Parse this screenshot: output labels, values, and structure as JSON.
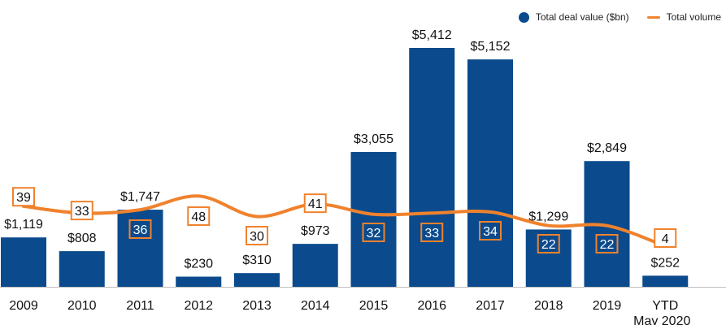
{
  "chart_data": {
    "type": "bar",
    "categories": [
      "2009",
      "2010",
      "2011",
      "2012",
      "2013",
      "2014",
      "2015",
      "2016",
      "2017",
      "2018",
      "2019",
      "YTD May 2020"
    ],
    "category_lines": [
      [
        "2009"
      ],
      [
        "2010"
      ],
      [
        "2011"
      ],
      [
        "2012"
      ],
      [
        "2013"
      ],
      [
        "2014"
      ],
      [
        "2015"
      ],
      [
        "2016"
      ],
      [
        "2017"
      ],
      [
        "2018"
      ],
      [
        "2019"
      ],
      [
        "YTD",
        "May 2020"
      ]
    ],
    "series": [
      {
        "name": "Total deal value ($bn)",
        "kind": "bar",
        "color": "#0b4a8c",
        "values": [
          1119,
          808,
          1747,
          230,
          310,
          973,
          3055,
          5412,
          5152,
          1299,
          2849,
          252
        ],
        "labels": [
          "$1,119",
          "$808",
          "$1,747",
          "$230",
          "$310",
          "$973",
          "$3,055",
          "$5,412",
          "$5,152",
          "$1,299",
          "$2,849",
          "$252"
        ]
      },
      {
        "name": "Total volume",
        "kind": "line",
        "color": "#f0822d",
        "values": [
          39,
          33,
          36,
          48,
          30,
          41,
          32,
          33,
          34,
          22,
          22,
          4
        ],
        "labels": [
          "39",
          "33",
          "36",
          "48",
          "30",
          "41",
          "32",
          "33",
          "34",
          "22",
          "22",
          "4"
        ]
      }
    ],
    "title": "",
    "xlabel": "",
    "ylabel": "",
    "legend_position": "top-right",
    "grid": false
  }
}
